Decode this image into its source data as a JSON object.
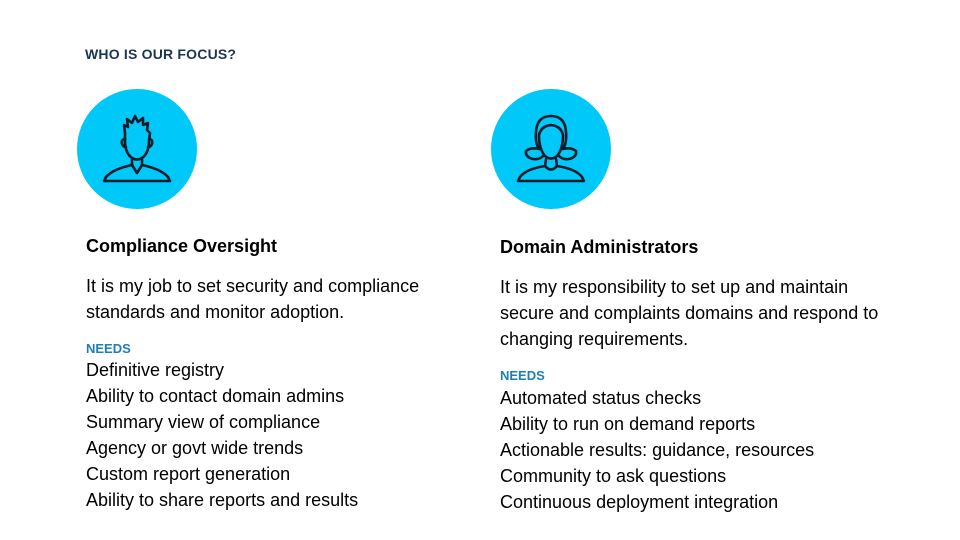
{
  "slide": {
    "title": "WHO IS OUR FOCUS?"
  },
  "colors": {
    "accent_circle": "#00c8f8",
    "title": "#1c3553",
    "needs_label": "#1f7fb2"
  },
  "personas": [
    {
      "icon": "male-user-icon",
      "name": "Compliance Oversight",
      "description": "It is my job to set security and compliance standards and monitor adoption.",
      "needs_label": "NEEDS",
      "needs": [
        "Definitive registry",
        "Ability to contact domain admins",
        "Summary view of compliance",
        "Agency or govt wide trends",
        "Custom report generation",
        "Ability to share reports and results"
      ]
    },
    {
      "icon": "female-user-icon",
      "name": "Domain Administrators",
      "description": "It is my responsibility to set up and maintain secure and complaints domains and respond to changing requirements.",
      "needs_label": "NEEDS",
      "needs": [
        "Automated status checks",
        "Ability to run on demand reports",
        "Actionable results: guidance, resources",
        "Community to ask questions",
        "Continuous deployment integration"
      ]
    }
  ]
}
